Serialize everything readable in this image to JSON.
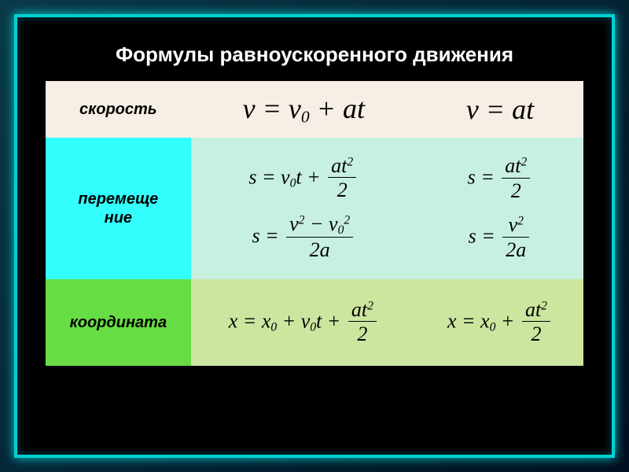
{
  "title": "Формулы  равноускоренного  движения",
  "rows": [
    {
      "label": "скорость",
      "label_bg": "#f7efe6",
      "main_bg": "#f7efe6",
      "side_bg": "#f7efe6",
      "main": [
        {
          "html": "v = v<sub>0</sub> + at",
          "size": "big"
        }
      ],
      "side": [
        {
          "html": "v = at",
          "size": "big"
        }
      ]
    },
    {
      "label": "перемещение",
      "label_bg": "#33ffff",
      "main_bg": "#c8f0e0",
      "side_bg": "#c8f0e0",
      "main": [
        {
          "html": "s = v<sub>0</sub>t + <span class='frac'><span class='num'>at<sup>2</sup></span><span class='den'>2</span></span>",
          "size": "med"
        },
        {
          "html": "s = <span class='frac'><span class='num'>v<sup>2</sup> &minus; v<sub>0</sub><sup>2</sup></span><span class='den'>2a</span></span>",
          "size": "med"
        }
      ],
      "side": [
        {
          "html": "s = <span class='frac'><span class='num'>at<sup>2</sup></span><span class='den'>2</span></span>",
          "size": "med"
        },
        {
          "html": "s = <span class='frac'><span class='num'>v<sup>2</sup></span><span class='den'>2a</span></span>",
          "size": "med"
        }
      ]
    },
    {
      "label": "координата",
      "label_bg": "#66dd44",
      "main_bg": "#cce6a0",
      "side_bg": "#cce6a0",
      "main": [
        {
          "html": "x = x<sub>0</sub> + v<sub>0</sub>t + <span class='frac'><span class='num'>at<sup>2</sup></span><span class='den'>2</span></span>",
          "size": "med"
        }
      ],
      "side": [
        {
          "html": "x = x<sub>0</sub> + <span class='frac'><span class='num'>at<sup>2</sup></span><span class='den'>2</span></span>",
          "size": "med"
        }
      ]
    }
  ],
  "frame": {
    "neon_color": "#00d0d0",
    "outer_bg_from": "#0a3a4a",
    "outer_bg_to": "#001020",
    "inner_bg": "#000000"
  }
}
